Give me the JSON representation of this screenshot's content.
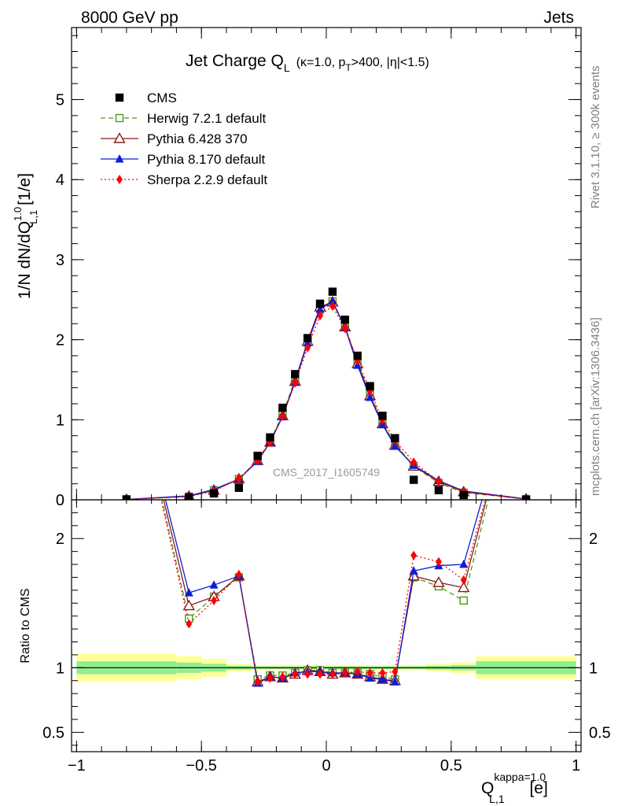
{
  "header": {
    "left": "8000 GeV pp",
    "right": "Jets"
  },
  "side_labels": {
    "rivet": "Rivet 3.1.10, ≥ 300k events",
    "mcplots": "mcplots.cern.ch [arXiv:1306.3436]"
  },
  "watermark": "CMS_2017_I1605749",
  "title": {
    "main": "Jet Charge Q",
    "sub_L": "L",
    "sel_kappa": "(κ=1.0, p",
    "sel_T": "T",
    "sel_rest": ">400, |η|<1.5)"
  },
  "ylabel_main": {
    "pre": "1/N dN/dQ",
    "sup": "1.0",
    "sub": "L,1",
    "post": " [1/e]"
  },
  "ylabel_ratio": "Ratio to CMS",
  "xlabel": {
    "pre": "Q",
    "sup": "kappa=1.0",
    "sub": "L,1",
    "post": " [e]"
  },
  "colors": {
    "cms": "#000000",
    "herwig": "#4a9a1a",
    "pythia6": "#8b1a1a",
    "pythia8": "#0a1ed6",
    "sherpa": "#ff0000",
    "band_inner": "#90ee90",
    "band_outer": "#ffff99"
  },
  "chart_data": {
    "type": "line",
    "x": [
      -0.8,
      -0.55,
      -0.45,
      -0.35,
      -0.275,
      -0.225,
      -0.175,
      -0.125,
      -0.075,
      -0.025,
      0.025,
      0.075,
      0.125,
      0.175,
      0.225,
      0.275,
      0.35,
      0.45,
      0.55,
      0.8
    ],
    "xlim": [
      -1.02,
      1.02
    ],
    "ylim": [
      0,
      5.9
    ],
    "ratio_ylim": [
      0.35,
      2.3
    ],
    "xticks": [
      -1,
      -0.5,
      0,
      0.5,
      1
    ],
    "xtick_labels": [
      "−1",
      "−0.5",
      "0",
      "0.5",
      "1"
    ],
    "yticks": [
      0,
      1,
      2,
      3,
      4,
      5
    ],
    "ytick_labels": [
      "0",
      "1",
      "2",
      "3",
      "4",
      "5"
    ],
    "ratio_yticks": [
      0.5,
      1,
      2
    ],
    "ratio_ytick_labels": [
      "0.5",
      "1",
      "2"
    ],
    "series": [
      {
        "name": "CMS",
        "key": "cms",
        "marker": "square-filled",
        "line": "none",
        "values": [
          0.005,
          0.03,
          0.08,
          0.15,
          0.55,
          0.78,
          1.15,
          1.57,
          2.02,
          2.45,
          2.6,
          2.25,
          1.8,
          1.42,
          1.05,
          0.77,
          0.25,
          0.12,
          0.06,
          0.002
        ]
      },
      {
        "name": "Herwig 7.2.1 default",
        "key": "herwig",
        "marker": "square-open",
        "line": "dashed",
        "values": [
          0.005,
          0.04,
          0.12,
          0.26,
          0.5,
          0.73,
          1.07,
          1.5,
          1.97,
          2.4,
          2.48,
          2.17,
          1.72,
          1.33,
          0.96,
          0.7,
          0.42,
          0.21,
          0.09,
          0.01
        ],
        "ratio": [
          3.5,
          1.38,
          1.55,
          1.7,
          0.91,
          0.94,
          0.94,
          0.96,
          0.98,
          0.98,
          0.96,
          0.96,
          0.96,
          0.95,
          0.93,
          0.91,
          1.7,
          1.63,
          1.52,
          3.5
        ]
      },
      {
        "name": "Pythia 6.428 370",
        "key": "pythia6",
        "marker": "triangle-open",
        "line": "solid",
        "values": [
          0.005,
          0.045,
          0.12,
          0.26,
          0.49,
          0.72,
          1.05,
          1.48,
          1.98,
          2.41,
          2.47,
          2.16,
          1.7,
          1.3,
          0.95,
          0.68,
          0.42,
          0.23,
          0.1,
          0.01
        ],
        "ratio": [
          3.5,
          1.48,
          1.55,
          1.71,
          0.89,
          0.93,
          0.92,
          0.95,
          0.98,
          0.97,
          0.95,
          0.96,
          0.95,
          0.93,
          0.91,
          0.9,
          1.71,
          1.66,
          1.62,
          3.5
        ]
      },
      {
        "name": "Pythia 8.170 default",
        "key": "pythia8",
        "marker": "triangle-filled",
        "line": "solid",
        "values": [
          0.005,
          0.05,
          0.13,
          0.26,
          0.48,
          0.72,
          1.04,
          1.47,
          1.96,
          2.38,
          2.48,
          2.15,
          1.68,
          1.28,
          0.94,
          0.67,
          0.43,
          0.24,
          0.11,
          0.012
        ],
        "ratio": [
          3.5,
          1.58,
          1.64,
          1.71,
          0.88,
          0.93,
          0.92,
          0.96,
          0.97,
          0.97,
          0.96,
          0.96,
          0.95,
          0.92,
          0.91,
          0.89,
          1.75,
          1.79,
          1.8,
          3.5
        ]
      },
      {
        "name": "Sherpa 2.2.9 default",
        "key": "sherpa",
        "marker": "diamond-filled",
        "line": "dotted",
        "values": [
          0.005,
          0.04,
          0.11,
          0.26,
          0.49,
          0.72,
          1.04,
          1.46,
          1.9,
          2.3,
          2.42,
          2.14,
          1.74,
          1.36,
          1.0,
          0.74,
          0.47,
          0.23,
          0.1,
          0.01
        ],
        "ratio": [
          3.5,
          1.34,
          1.52,
          1.72,
          0.89,
          0.92,
          0.93,
          0.95,
          0.95,
          0.95,
          0.95,
          0.96,
          0.97,
          0.96,
          0.96,
          0.97,
          1.87,
          1.82,
          1.68,
          3.5
        ]
      }
    ],
    "ratio_band": {
      "edges": [
        -1.0,
        -0.6,
        -0.5,
        -0.4,
        -0.3,
        0.3,
        0.4,
        0.5,
        0.6,
        1.0
      ],
      "inner": [
        0.05,
        0.04,
        0.03,
        0.015,
        0.01,
        0.01,
        0.015,
        0.02,
        0.05
      ],
      "outer": [
        0.11,
        0.09,
        0.07,
        0.03,
        0.02,
        0.02,
        0.03,
        0.04,
        0.09
      ]
    }
  }
}
